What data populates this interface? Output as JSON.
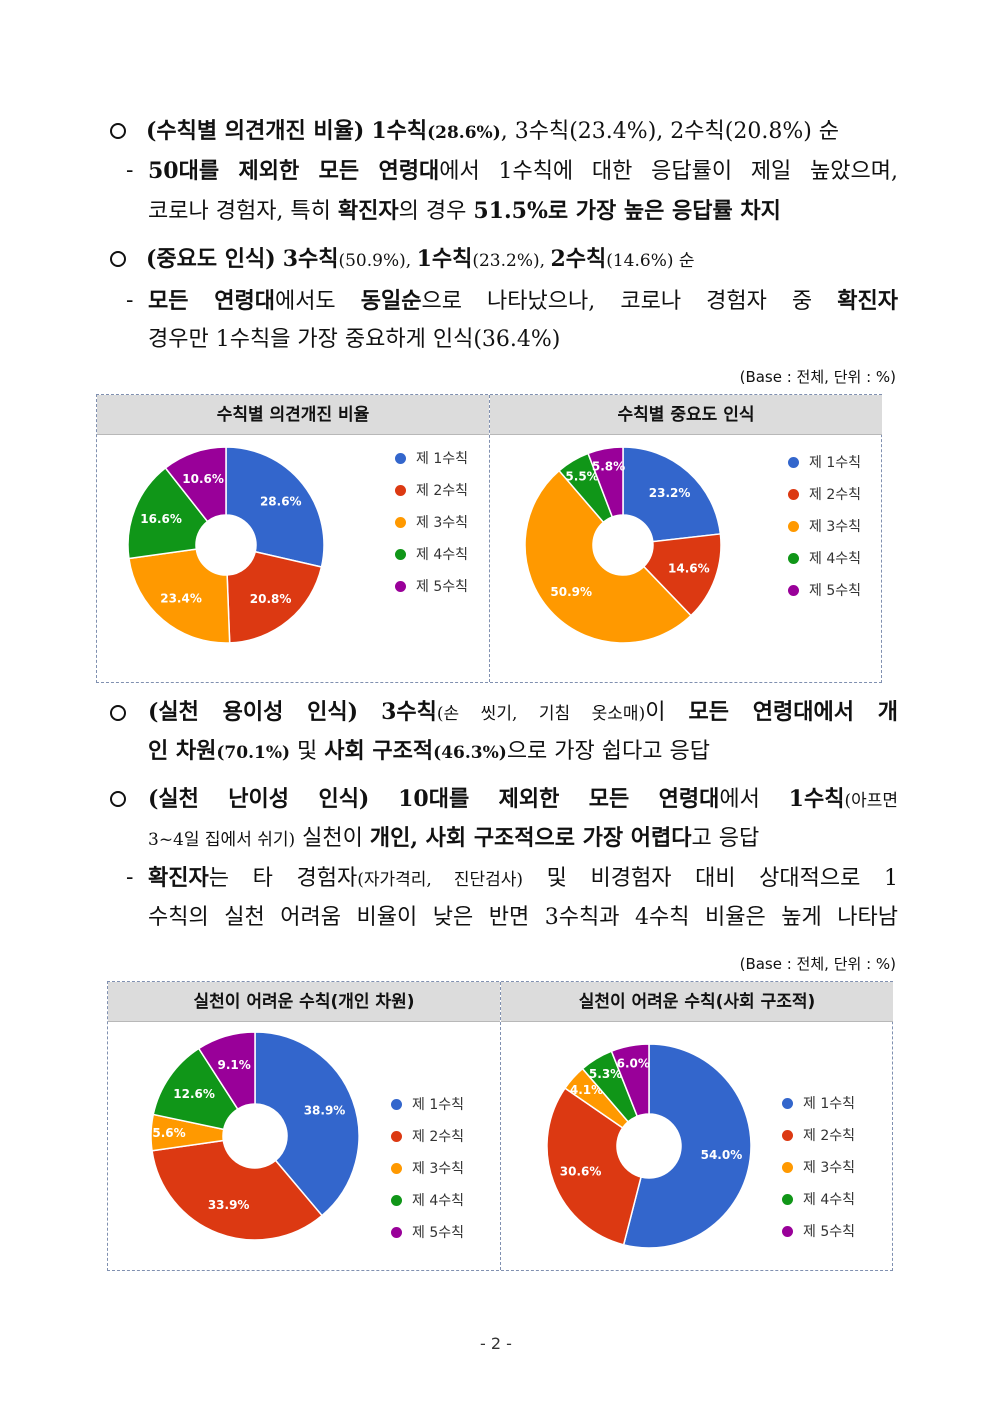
{
  "section1": {
    "bullet1": {
      "t1": "(수칙별 의견개진 비율)",
      "t2": "1수칙",
      "t3": "(28.6%)",
      "t4": ", 3수칙(23.4%), 2수칙(20.8%) 순"
    },
    "sub1": {
      "t1": "50대를 제외한 모든 연령대",
      "t2": "에서 1수칙에 대한 응답률이 제일 높았으며,",
      "t3": "코로나 경험자, 특히 ",
      "t4": "확진자",
      "t5": "의 경우 ",
      "t6": "51.5%로 가장 높은 응답률 차지"
    },
    "bullet2": {
      "t1": "(중요도 인식)",
      "t2": "3수칙",
      "t3": "(50.9%), ",
      "t4": "1수칙",
      "t5": "(23.2%), ",
      "t6": "2수칙",
      "t7": "(14.6%) 순"
    },
    "sub2": {
      "t1": "모든 연령대",
      "t2": "에서도 ",
      "t3": "동일순",
      "t4": "으로 나타났으나, 코로나 경험자 중 ",
      "t5": "확진자",
      "t6": "경우만 1수칙을 가장 중요하게 인식(36.4%)"
    },
    "base": "(Base : 전체, 단위 : %)"
  },
  "section2": {
    "bullet3": {
      "t1": "(실천 용이성 인식)",
      "t2": "3수칙",
      "t3": "(손 씻기, 기침 옷소매)",
      "t4": "이 ",
      "t5": "모든 연령대에서 개",
      "t6": "인 차원",
      "t7": "(70.1%)",
      "t8": " 및 ",
      "t9": "사회 구조적",
      "t10": "(46.3%)",
      "t11": "으로 가장 쉽다고 응답"
    },
    "bullet4": {
      "t1": "(실천 난이성 인식)",
      "t2": "10대를 제외한 모든 연령대",
      "t3": "에서 ",
      "t4": "1수칙",
      "t5": "(아프면",
      "t6": "3~4일 집에서 쉬기)",
      "t7": " 실천이 ",
      "t8": "개인, 사회 구조적으로 가장 어렵다",
      "t9": "고 응답"
    },
    "sub3": {
      "t1": "확진자",
      "t2": "는 타 경험자",
      "t3": "(자가격리, 진단검사)",
      "t4": " 및 비경험자 대비 상대적으로 1",
      "t5": "수칙의 실천 어려움 비율이 낮은 반면 3수칙과 4수칙 비율은 높게 나타남"
    },
    "base": "(Base : 전체, 단위 : %)"
  },
  "legend_labels": [
    "제 1수칙",
    "제 2수칙",
    "제 3수칙",
    "제 4수칙",
    "제 5수칙"
  ],
  "colors": [
    "#3366cc",
    "#dc3912",
    "#ff9900",
    "#109618",
    "#990099"
  ],
  "chart_data": [
    {
      "type": "pie",
      "title": "수칙별 의견개진 비율",
      "categories": [
        "제 1수칙",
        "제 2수칙",
        "제 3수칙",
        "제 4수칙",
        "제 5수칙"
      ],
      "values": [
        28.6,
        20.8,
        23.4,
        16.6,
        10.6
      ],
      "labels": [
        "28.6%",
        "20.8%",
        "23.4%",
        "16.6%",
        "10.6%"
      ],
      "legend": "right"
    },
    {
      "type": "pie",
      "title": "수칙별 중요도 인식",
      "categories": [
        "제 1수칙",
        "제 2수칙",
        "제 3수칙",
        "제 4수칙",
        "제 5수칙"
      ],
      "values": [
        23.2,
        14.6,
        50.9,
        5.5,
        5.8
      ],
      "labels": [
        "23.2%",
        "14.6%",
        "50.9%",
        "5.5%",
        "5.8%"
      ],
      "legend": "right"
    },
    {
      "type": "pie",
      "title": "실천이 어려운 수칙(개인 차원)",
      "categories": [
        "제 1수칙",
        "제 2수칙",
        "제 3수칙",
        "제 4수칙",
        "제 5수칙"
      ],
      "values": [
        38.9,
        33.9,
        5.6,
        12.6,
        9.1
      ],
      "labels": [
        "38.9%",
        "33.9%",
        "5.6%",
        "12.6%",
        "9.1%"
      ],
      "legend": "right"
    },
    {
      "type": "pie",
      "title": "실천이 어려운 수칙(사회 구조적)",
      "categories": [
        "제 1수칙",
        "제 2수칙",
        "제 3수칙",
        "제 4수칙",
        "제 5수칙"
      ],
      "values": [
        54.0,
        30.6,
        4.1,
        5.3,
        6.0
      ],
      "labels": [
        "54.0%",
        "30.6%",
        "4.1%",
        "5.3%",
        "6.0%"
      ],
      "legend": "right"
    }
  ],
  "page_number": "- 2 -"
}
